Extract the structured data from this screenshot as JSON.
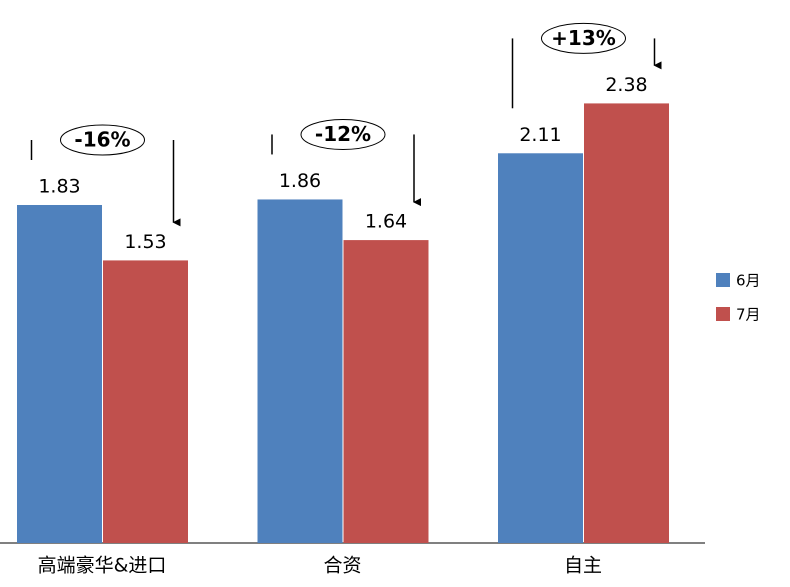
{
  "chart_data": {
    "type": "bar",
    "categories": [
      "高端豪华&进口",
      "合资",
      "自主"
    ],
    "series": [
      {
        "name": "6月",
        "color": "#4f81bd",
        "values": [
          1.83,
          1.86,
          2.11
        ]
      },
      {
        "name": "7月",
        "color": "#c0504d",
        "values": [
          1.53,
          1.64,
          2.38
        ]
      }
    ],
    "annotations": [
      "-16%",
      "-12%",
      "+13%"
    ],
    "legend": "right"
  }
}
